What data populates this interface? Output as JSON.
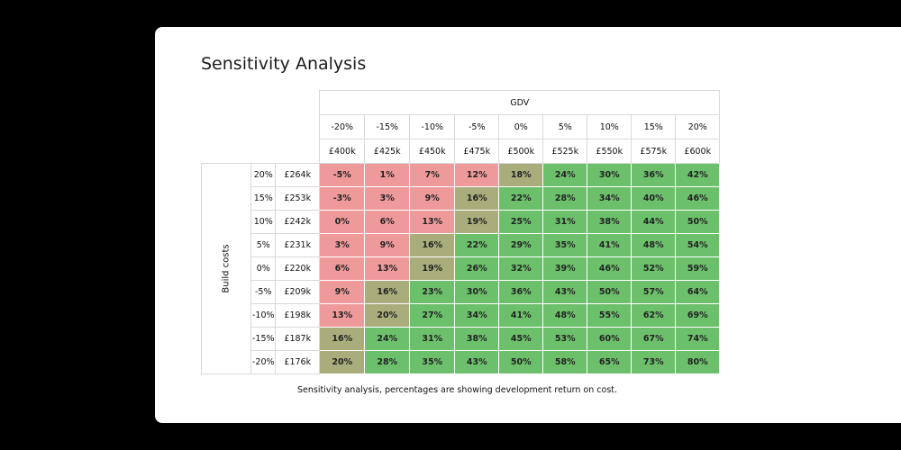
{
  "title": "Sensitivity Analysis",
  "gdv_header": "GDV",
  "gdv_pct": [
    "-20%",
    "-15%",
    "-10%",
    "-5%",
    "0%",
    "5%",
    "10%",
    "15%",
    "20%"
  ],
  "gdv_val": [
    "£400k",
    "£425k",
    "£450k",
    "£475k",
    "£500k",
    "£525k",
    "£550k",
    "£575k",
    "£600k"
  ],
  "build_costs_label": "Build costs",
  "rows": [
    {
      "pct": "20%",
      "val": "£264k",
      "cells": [
        "-5%",
        "1%",
        "7%",
        "12%",
        "18%",
        "24%",
        "30%",
        "36%",
        "42%"
      ]
    },
    {
      "pct": "15%",
      "val": "£253k",
      "cells": [
        "-3%",
        "3%",
        "9%",
        "16%",
        "22%",
        "28%",
        "34%",
        "40%",
        "46%"
      ]
    },
    {
      "pct": "10%",
      "val": "£242k",
      "cells": [
        "0%",
        "6%",
        "13%",
        "19%",
        "25%",
        "31%",
        "38%",
        "44%",
        "50%"
      ]
    },
    {
      "pct": "5%",
      "val": "£231k",
      "cells": [
        "3%",
        "9%",
        "16%",
        "22%",
        "29%",
        "35%",
        "41%",
        "48%",
        "54%"
      ]
    },
    {
      "pct": "0%",
      "val": "£220k",
      "cells": [
        "6%",
        "13%",
        "19%",
        "26%",
        "32%",
        "39%",
        "46%",
        "52%",
        "59%"
      ]
    },
    {
      "pct": "-5%",
      "val": "£209k",
      "cells": [
        "9%",
        "16%",
        "23%",
        "30%",
        "36%",
        "43%",
        "50%",
        "57%",
        "64%"
      ]
    },
    {
      "pct": "-10%",
      "val": "£198k",
      "cells": [
        "13%",
        "20%",
        "27%",
        "34%",
        "41%",
        "48%",
        "55%",
        "62%",
        "69%"
      ]
    },
    {
      "pct": "-15%",
      "val": "£187k",
      "cells": [
        "16%",
        "24%",
        "31%",
        "38%",
        "45%",
        "53%",
        "60%",
        "67%",
        "74%"
      ]
    },
    {
      "pct": "-20%",
      "val": "£176k",
      "cells": [
        "20%",
        "28%",
        "35%",
        "43%",
        "50%",
        "58%",
        "65%",
        "73%",
        "80%"
      ]
    }
  ],
  "caption": "Sensitivity analysis, percentages are showing development return on cost.",
  "colors": {
    "low": "#ef9a9a",
    "mid": "#a9ad7b",
    "high": "#6cc06c"
  }
}
